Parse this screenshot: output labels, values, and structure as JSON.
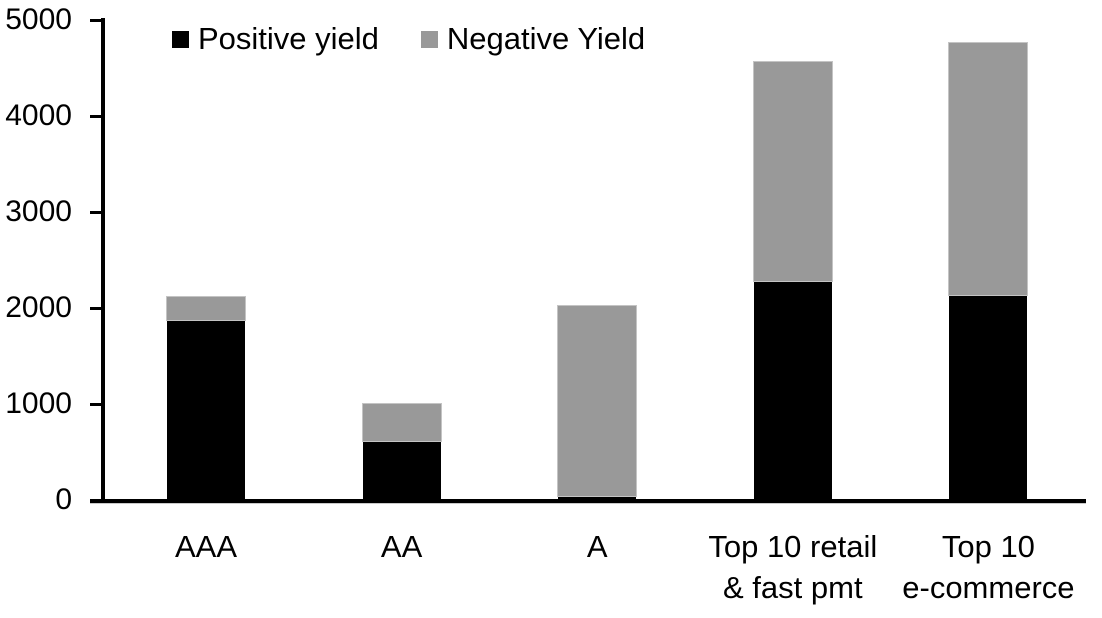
{
  "chart_data": {
    "type": "bar",
    "stacked": true,
    "title": "",
    "xlabel": "",
    "ylabel": "",
    "categories": [
      "AAA",
      "AA",
      "A",
      "Top 10 retail\n& fast pmt",
      "Top 10\ne-commerce"
    ],
    "series": [
      {
        "name": "Positive yield",
        "color": "#000000",
        "values": [
          1880,
          610,
          40,
          2280,
          2140
        ]
      },
      {
        "name": "Negative Yield",
        "color": "#999999",
        "values": [
          230,
          390,
          1980,
          2280,
          2620
        ]
      }
    ],
    "totals": [
      2110,
      1000,
      2020,
      4560,
      4760
    ],
    "ylim": [
      0,
      5000
    ],
    "yticks": [
      0,
      1000,
      2000,
      3000,
      4000,
      5000
    ],
    "legend_position": "top",
    "grid": false,
    "axis_color": "#000000",
    "background_color": "#ffffff"
  }
}
